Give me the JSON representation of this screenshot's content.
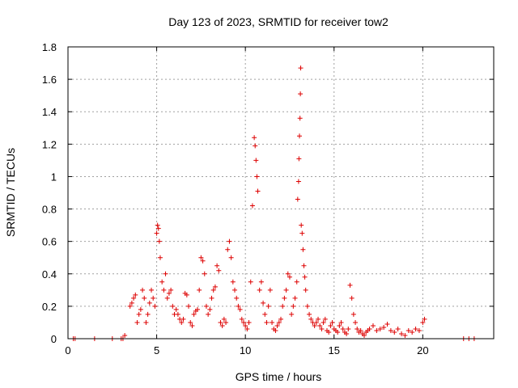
{
  "chart_data": {
    "type": "scatter",
    "title": "Day 123 of 2023, SRMTID for receiver tow2",
    "xlabel": "GPS time / hours",
    "ylabel": "SRMTID / TECUs",
    "xlim": [
      0,
      24
    ],
    "ylim": [
      0,
      1.8
    ],
    "x_ticks": [
      0,
      5,
      10,
      15,
      20
    ],
    "y_ticks": [
      0,
      0.2,
      0.4,
      0.6,
      0.8,
      1,
      1.2,
      1.4,
      1.6,
      1.8
    ],
    "x_tick_labels": [
      "0",
      "5",
      "10",
      "15",
      "20"
    ],
    "y_tick_labels": [
      "0",
      "0.2",
      "0.4",
      "0.6",
      "0.8",
      "1",
      "1.2",
      "1.4",
      "1.6",
      "1.8"
    ],
    "grid": true,
    "marker": "+",
    "color": "#dd0000",
    "series": [
      {
        "name": "tow2",
        "x": [
          0.3,
          0.4,
          1.5,
          2.5,
          3.0,
          3.1,
          3.2,
          3.5,
          3.6,
          3.7,
          3.8,
          3.9,
          4.0,
          4.1,
          4.2,
          4.3,
          4.4,
          4.5,
          4.6,
          4.7,
          4.8,
          4.9,
          5.0,
          5.05,
          5.1,
          5.15,
          5.2,
          5.3,
          5.4,
          5.5,
          5.6,
          5.7,
          5.8,
          5.9,
          6.0,
          6.1,
          6.2,
          6.3,
          6.4,
          6.5,
          6.6,
          6.7,
          6.8,
          6.9,
          7.0,
          7.1,
          7.2,
          7.3,
          7.4,
          7.5,
          7.6,
          7.7,
          7.8,
          7.9,
          8.0,
          8.1,
          8.2,
          8.3,
          8.4,
          8.5,
          8.6,
          8.7,
          8.8,
          8.9,
          9.0,
          9.1,
          9.2,
          9.3,
          9.4,
          9.5,
          9.6,
          9.7,
          9.8,
          9.9,
          10.0,
          10.1,
          10.2,
          10.3,
          10.4,
          10.5,
          10.55,
          10.6,
          10.65,
          10.7,
          10.8,
          10.9,
          11.0,
          11.1,
          11.2,
          11.3,
          11.4,
          11.5,
          11.6,
          11.7,
          11.8,
          11.9,
          12.0,
          12.1,
          12.2,
          12.3,
          12.4,
          12.5,
          12.6,
          12.7,
          12.8,
          12.9,
          12.95,
          13.0,
          13.02,
          13.05,
          13.08,
          13.1,
          13.12,
          13.15,
          13.2,
          13.25,
          13.3,
          13.35,
          13.4,
          13.5,
          13.6,
          13.7,
          13.8,
          13.9,
          14.0,
          14.1,
          14.2,
          14.3,
          14.4,
          14.5,
          14.6,
          14.7,
          14.8,
          14.9,
          15.0,
          15.1,
          15.2,
          15.3,
          15.4,
          15.5,
          15.6,
          15.7,
          15.8,
          15.9,
          16.0,
          16.1,
          16.2,
          16.3,
          16.4,
          16.5,
          16.6,
          16.7,
          16.8,
          16.9,
          17.0,
          17.2,
          17.4,
          17.6,
          17.8,
          18.0,
          18.2,
          18.4,
          18.6,
          18.8,
          19.0,
          19.2,
          19.4,
          19.6,
          19.8,
          20.0,
          20.1,
          22.3,
          22.6,
          22.9
        ],
        "y": [
          0,
          0,
          0,
          0,
          0,
          0,
          0.02,
          0.2,
          0.22,
          0.25,
          0.27,
          0.1,
          0.15,
          0.18,
          0.3,
          0.25,
          0.1,
          0.15,
          0.22,
          0.3,
          0.25,
          0.2,
          0.65,
          0.7,
          0.68,
          0.6,
          0.5,
          0.35,
          0.3,
          0.4,
          0.25,
          0.28,
          0.3,
          0.2,
          0.15,
          0.18,
          0.15,
          0.12,
          0.1,
          0.12,
          0.28,
          0.27,
          0.2,
          0.1,
          0.08,
          0.15,
          0.17,
          0.18,
          0.3,
          0.5,
          0.48,
          0.4,
          0.2,
          0.15,
          0.18,
          0.25,
          0.3,
          0.32,
          0.45,
          0.42,
          0.1,
          0.08,
          0.12,
          0.1,
          0.55,
          0.6,
          0.5,
          0.35,
          0.3,
          0.25,
          0.2,
          0.18,
          0.12,
          0.1,
          0.08,
          0.06,
          0.1,
          0.35,
          0.82,
          1.24,
          1.19,
          1.1,
          1.0,
          0.91,
          0.3,
          0.35,
          0.22,
          0.15,
          0.1,
          0.2,
          0.3,
          0.1,
          0.06,
          0.05,
          0.08,
          0.1,
          0.12,
          0.2,
          0.25,
          0.3,
          0.4,
          0.38,
          0.15,
          0.2,
          0.25,
          0.35,
          0.86,
          0.97,
          1.11,
          1.25,
          1.36,
          1.51,
          1.67,
          0.7,
          0.65,
          0.55,
          0.45,
          0.38,
          0.3,
          0.2,
          0.15,
          0.12,
          0.1,
          0.08,
          0.1,
          0.12,
          0.08,
          0.06,
          0.1,
          0.12,
          0.05,
          0.04,
          0.08,
          0.1,
          0.06,
          0.05,
          0.04,
          0.08,
          0.1,
          0.06,
          0.04,
          0.03,
          0.06,
          0.33,
          0.25,
          0.15,
          0.1,
          0.06,
          0.04,
          0.05,
          0.03,
          0.02,
          0.04,
          0.05,
          0.06,
          0.08,
          0.05,
          0.06,
          0.07,
          0.09,
          0.05,
          0.04,
          0.06,
          0.03,
          0.02,
          0.05,
          0.04,
          0.06,
          0.05,
          0.1,
          0.12,
          0,
          0,
          0
        ]
      }
    ]
  }
}
